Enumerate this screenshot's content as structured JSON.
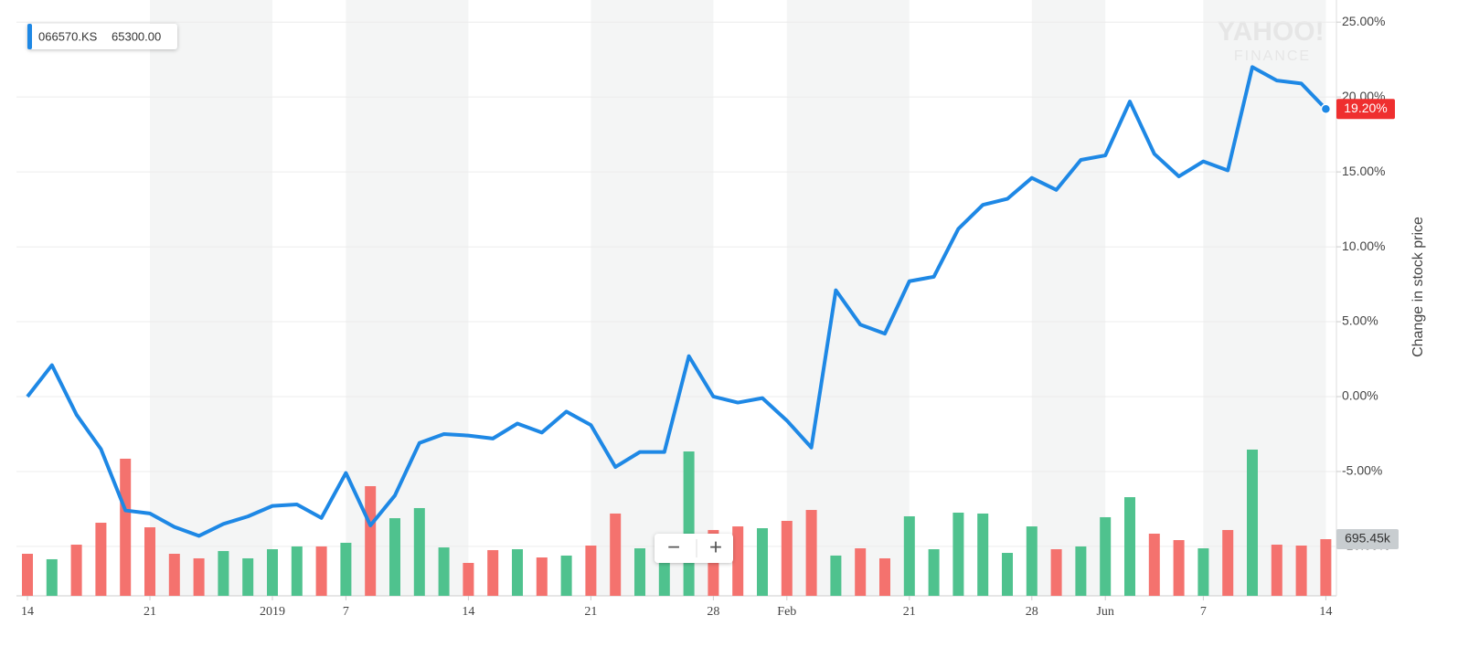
{
  "chart_data": {
    "type": "line",
    "legend_symbol": "066570.KS",
    "legend_value": "65300.00",
    "y_axis_label": "Change in stock price",
    "watermark": [
      "YAHOO!",
      "FINANCE"
    ],
    "controls": [
      "−",
      "+"
    ],
    "current_value_label": "19.20%",
    "categories": [
      "14",
      null,
      null,
      null,
      null,
      "21",
      null,
      null,
      null,
      null,
      "2019",
      null,
      null,
      "7",
      null,
      null,
      null,
      null,
      "14",
      null,
      null,
      null,
      null,
      "21",
      null,
      null,
      null,
      null,
      "28",
      null,
      null,
      "Feb",
      null,
      null,
      null,
      null,
      "21",
      null,
      null,
      null,
      null,
      "28",
      null,
      null,
      "Jun",
      null,
      null,
      null,
      "7",
      null,
      null,
      null,
      null,
      "14"
    ],
    "series": [
      {
        "name": "066570.KS",
        "color": "#1e88e5",
        "values": [
          0.0,
          2.1,
          -1.2,
          -3.5,
          -7.6,
          -7.8,
          -8.7,
          -9.3,
          -8.5,
          -8.0,
          -7.3,
          -7.2,
          -8.1,
          -5.1,
          -8.6,
          -6.6,
          -3.1,
          -2.5,
          -2.6,
          -2.8,
          -1.8,
          -2.4,
          -1.0,
          -1.9,
          -4.7,
          -3.7,
          -3.7,
          2.7,
          0.0,
          -0.4,
          -0.1,
          -1.6,
          -3.4,
          7.1,
          4.8,
          4.2,
          7.7,
          8.0,
          11.2,
          12.8,
          13.2,
          14.6,
          13.8,
          15.8,
          16.1,
          19.7,
          16.2,
          14.7,
          15.7,
          15.1,
          22.0,
          21.1,
          20.9,
          19.2
        ]
      }
    ],
    "volume": {
      "axis": "y2",
      "last_label": "695.45k",
      "values": [
        516,
        449,
        628,
        897,
        1683,
        841,
        516,
        460,
        550,
        460,
        572,
        606,
        606,
        651,
        1346,
        953,
        1077,
        594,
        404,
        561,
        572,
        471,
        494,
        617,
        1010,
        583,
        471,
        1772,
        808,
        852,
        830,
        920,
        1054,
        494,
        583,
        460,
        976,
        572,
        1021,
        1010,
        527,
        852,
        572,
        606,
        965,
        1211,
        763,
        684,
        583,
        808,
        1795,
        628,
        617,
        695.45
      ],
      "colors": [
        "#f4726e",
        "#4fc28e",
        "#f4726e",
        "#f4726e",
        "#f4726e",
        "#f4726e",
        "#f4726e",
        "#f4726e",
        "#4fc28e",
        "#4fc28e",
        "#4fc28e",
        "#4fc28e",
        "#f4726e",
        "#4fc28e",
        "#f4726e",
        "#4fc28e",
        "#4fc28e",
        "#4fc28e",
        "#f4726e",
        "#f4726e",
        "#4fc28e",
        "#f4726e",
        "#4fc28e",
        "#f4726e",
        "#f4726e",
        "#4fc28e",
        "#4fc28e",
        "#4fc28e",
        "#f4726e",
        "#f4726e",
        "#4fc28e",
        "#f4726e",
        "#f4726e",
        "#4fc28e",
        "#f4726e",
        "#f4726e",
        "#4fc28e",
        "#4fc28e",
        "#4fc28e",
        "#4fc28e",
        "#4fc28e",
        "#4fc28e",
        "#f4726e",
        "#4fc28e",
        "#4fc28e",
        "#4fc28e",
        "#f4726e",
        "#f4726e",
        "#4fc28e",
        "#f4726e",
        "#4fc28e",
        "#f4726e",
        "#f4726e",
        "#f4726e"
      ]
    },
    "ylim": [
      -13.3,
      25.5
    ],
    "yticks": [
      {
        "value": 25,
        "label": "25.00%"
      },
      {
        "value": 20,
        "label": "20.00%"
      },
      {
        "value": 15,
        "label": "15.00%"
      },
      {
        "value": 10,
        "label": "10.00%"
      },
      {
        "value": 5,
        "label": "5.00%"
      },
      {
        "value": 0,
        "label": "0.00%"
      },
      {
        "value": -5,
        "label": "-5.00%"
      },
      {
        "value": -10,
        "label": "-10.00%"
      }
    ],
    "y2lim": [
      0,
      7134
    ],
    "grid": true
  }
}
